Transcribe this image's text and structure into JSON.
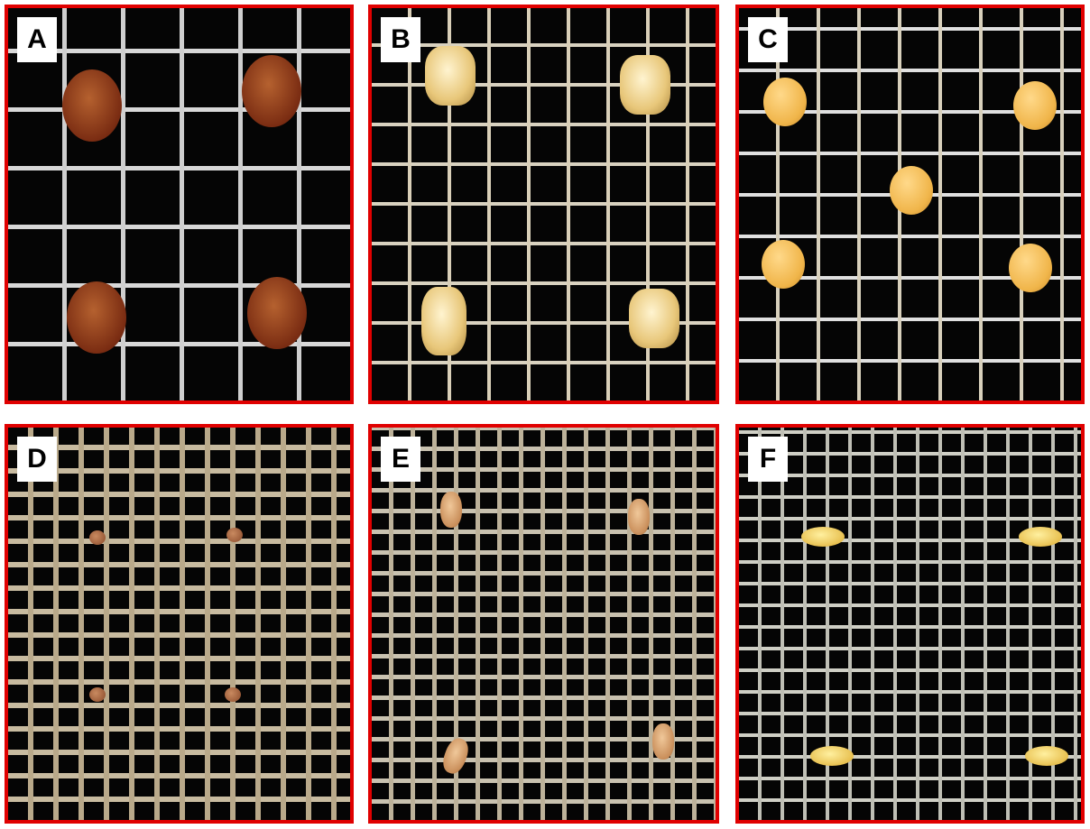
{
  "panels": [
    {
      "label": "A"
    },
    {
      "label": "B"
    },
    {
      "label": "C"
    },
    {
      "label": "D"
    },
    {
      "label": "E"
    },
    {
      "label": "F"
    }
  ],
  "colors": {
    "border": "#e00000",
    "background": "#050505",
    "mesh": "#d0d0d0"
  }
}
